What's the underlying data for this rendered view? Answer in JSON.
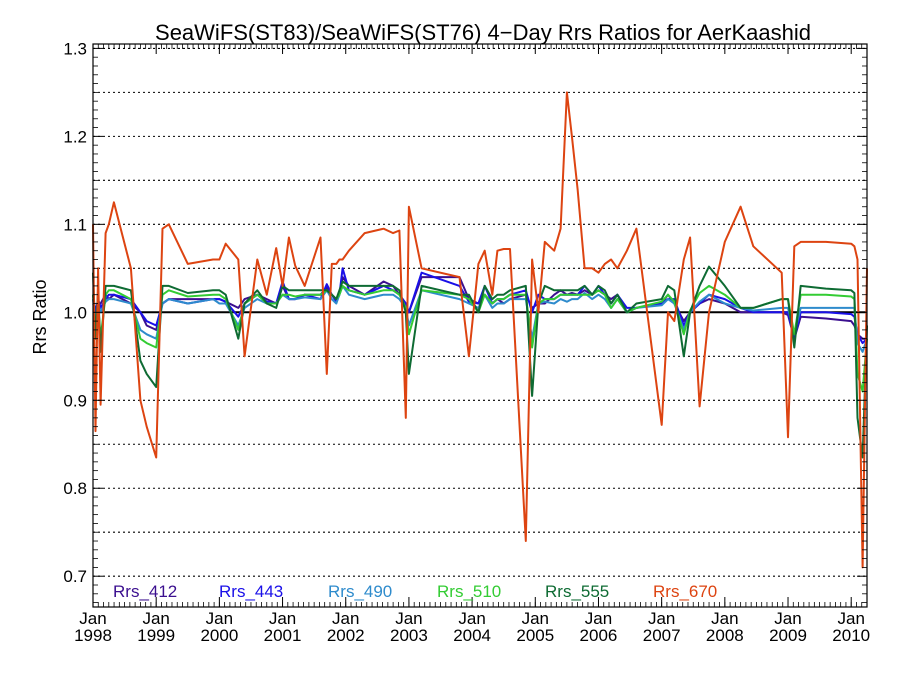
{
  "chart_data": {
    "type": "line",
    "title": "SeaWiFS(ST83)/SeaWiFS(ST76) 4−Day Rrs Ratios for AerKaashid",
    "ylabel": "Rrs Ratio",
    "xlabel": "",
    "xlim": [
      1998.0,
      2010.25
    ],
    "ylim": [
      0.665,
      1.305
    ],
    "yticks": [
      0.7,
      0.8,
      0.9,
      1.0,
      1.1,
      1.2,
      1.3
    ],
    "ytick_labels": [
      "0.7",
      "0.8",
      "0.9",
      "1.0",
      "1.1",
      "1.2",
      "1.3"
    ],
    "ygrid": [
      0.7,
      0.75,
      0.8,
      0.85,
      0.9,
      0.95,
      1.05,
      1.1,
      1.15,
      1.2,
      1.25,
      1.3
    ],
    "xticks": [
      {
        "x": 1998,
        "month": "Jan",
        "year": "1998"
      },
      {
        "x": 1999,
        "month": "Jan",
        "year": "1999"
      },
      {
        "x": 2000,
        "month": "Jan",
        "year": "2000"
      },
      {
        "x": 2001,
        "month": "Jan",
        "year": "2001"
      },
      {
        "x": 2002,
        "month": "Jan",
        "year": "2002"
      },
      {
        "x": 2003,
        "month": "Jan",
        "year": "2003"
      },
      {
        "x": 2004,
        "month": "Jan",
        "year": "2004"
      },
      {
        "x": 2005,
        "month": "Jan",
        "year": "2005"
      },
      {
        "x": 2006,
        "month": "Jan",
        "year": "2006"
      },
      {
        "x": 2007,
        "month": "Jan",
        "year": "2007"
      },
      {
        "x": 2008,
        "month": "Jan",
        "year": "2008"
      },
      {
        "x": 2009,
        "month": "Jan",
        "year": "2009"
      },
      {
        "x": 2010,
        "month": "Jan",
        "year": "2010"
      }
    ],
    "reference_line": 1.0,
    "grid": true,
    "legend_position": "bottom-left",
    "x": [
      1998.0,
      1998.04,
      1998.08,
      1998.12,
      1998.2,
      1998.25,
      1998.33,
      1998.6,
      1998.75,
      1998.85,
      1999.0,
      1999.1,
      1999.2,
      1999.5,
      1999.9,
      2000.0,
      2000.1,
      2000.3,
      2000.4,
      2000.6,
      2000.75,
      2000.9,
      2001.0,
      2001.1,
      2001.2,
      2001.35,
      2001.6,
      2001.7,
      2001.78,
      2001.85,
      2001.9,
      2001.95,
      2002.05,
      2002.3,
      2002.6,
      2002.75,
      2002.85,
      2002.95,
      2003.0,
      2003.2,
      2003.8,
      2003.95,
      2004.1,
      2004.2,
      2004.32,
      2004.4,
      2004.5,
      2004.6,
      2004.85,
      2004.95,
      2005.05,
      2005.15,
      2005.3,
      2005.4,
      2005.5,
      2005.58,
      2005.67,
      2005.78,
      2005.9,
      2006.0,
      2006.1,
      2006.2,
      2006.3,
      2006.45,
      2006.6,
      2007.0,
      2007.1,
      2007.2,
      2007.35,
      2007.45,
      2007.6,
      2007.75,
      2008.0,
      2008.25,
      2008.45,
      2008.9,
      2009.0,
      2009.1,
      2009.2,
      2009.6,
      2010.0,
      2010.05,
      2010.1,
      2010.18,
      2010.25
    ],
    "series": [
      {
        "name": "Rrs_412",
        "color": "#3b0f8f",
        "values": [
          1.01,
          1.005,
          1.008,
          1.01,
          1.02,
          1.015,
          1.02,
          1.01,
          1.0,
          0.985,
          0.98,
          1.01,
          1.015,
          1.015,
          1.015,
          1.015,
          1.012,
          1.005,
          1.015,
          1.02,
          1.015,
          1.01,
          1.03,
          1.015,
          1.015,
          1.02,
          1.02,
          1.028,
          1.02,
          1.015,
          1.02,
          1.04,
          1.03,
          1.02,
          1.035,
          1.03,
          1.02,
          1.01,
          1.0,
          1.04,
          1.04,
          1.015,
          1.01,
          1.02,
          1.01,
          1.015,
          1.01,
          1.015,
          1.02,
          1.005,
          1.01,
          1.01,
          1.02,
          1.025,
          1.02,
          1.022,
          1.02,
          1.025,
          1.02,
          1.025,
          1.02,
          1.015,
          1.02,
          1.0,
          1.005,
          1.01,
          1.02,
          1.01,
          0.99,
          1.0,
          1.01,
          1.015,
          1.01,
          1.0,
          1.0,
          1.0,
          0.997,
          0.97,
          0.995,
          0.993,
          0.99,
          0.985,
          0.975,
          0.97,
          0.97
        ]
      },
      {
        "name": "Rrs_443",
        "color": "#1a10e8",
        "values": [
          1.02,
          1.0,
          1.015,
          1.005,
          1.015,
          1.02,
          1.02,
          1.015,
          1.0,
          0.99,
          0.985,
          1.01,
          1.015,
          1.01,
          1.015,
          1.015,
          1.012,
          0.995,
          1.01,
          1.02,
          1.012,
          1.01,
          1.035,
          1.015,
          1.015,
          1.02,
          1.015,
          1.032,
          1.02,
          1.012,
          1.02,
          1.05,
          1.025,
          1.02,
          1.03,
          1.025,
          1.02,
          1.01,
          1.0,
          1.045,
          1.03,
          1.012,
          1.01,
          1.03,
          1.01,
          1.015,
          1.015,
          1.02,
          1.025,
          1.0,
          1.02,
          1.015,
          1.015,
          1.02,
          1.02,
          1.02,
          1.02,
          1.03,
          1.02,
          1.03,
          1.02,
          1.01,
          1.02,
          1.005,
          1.005,
          1.01,
          1.015,
          1.015,
          0.985,
          1.0,
          1.01,
          1.02,
          1.015,
          1.005,
          1.0,
          1.0,
          1.0,
          0.97,
          1.0,
          1.0,
          0.998,
          0.995,
          0.975,
          0.965,
          0.97
        ]
      },
      {
        "name": "Rrs_490",
        "color": "#2e8bcc",
        "values": [
          1.015,
          0.99,
          1.01,
          1.0,
          1.012,
          1.015,
          1.015,
          1.01,
          0.98,
          0.975,
          0.97,
          1.01,
          1.015,
          1.01,
          1.015,
          1.01,
          1.01,
          0.985,
          1.005,
          1.015,
          1.01,
          1.01,
          1.02,
          1.015,
          1.015,
          1.017,
          1.015,
          1.025,
          1.015,
          1.01,
          1.02,
          1.03,
          1.02,
          1.015,
          1.02,
          1.02,
          1.015,
          1.005,
          0.985,
          1.025,
          1.015,
          1.01,
          1.005,
          1.02,
          1.005,
          1.01,
          1.01,
          1.015,
          1.015,
          0.97,
          1.01,
          1.012,
          1.01,
          1.015,
          1.012,
          1.015,
          1.015,
          1.022,
          1.015,
          1.02,
          1.015,
          1.005,
          1.015,
          1.0,
          1.005,
          1.008,
          1.015,
          1.01,
          0.98,
          1.0,
          1.012,
          1.02,
          1.01,
          1.005,
          1.002,
          1.005,
          1.005,
          0.975,
          1.005,
          1.005,
          1.005,
          1.005,
          0.965,
          0.955,
          0.97
        ]
      },
      {
        "name": "Rrs_510",
        "color": "#33cc33",
        "values": [
          1.02,
          0.98,
          1.01,
          0.97,
          1.02,
          1.025,
          1.025,
          1.015,
          0.97,
          0.965,
          0.96,
          1.02,
          1.025,
          1.018,
          1.02,
          1.02,
          1.015,
          0.98,
          1.01,
          1.02,
          1.01,
          1.01,
          1.02,
          1.02,
          1.018,
          1.02,
          1.02,
          1.025,
          1.02,
          1.015,
          1.02,
          1.03,
          1.025,
          1.02,
          1.025,
          1.025,
          1.02,
          1.005,
          0.975,
          1.025,
          1.02,
          1.015,
          1.0,
          1.02,
          1.01,
          1.015,
          1.015,
          1.02,
          1.02,
          0.96,
          1.01,
          1.015,
          1.015,
          1.02,
          1.02,
          1.02,
          1.02,
          1.02,
          1.02,
          1.025,
          1.02,
          1.005,
          1.015,
          1.0,
          1.005,
          1.012,
          1.02,
          1.012,
          0.975,
          1.002,
          1.022,
          1.03,
          1.02,
          1.005,
          1.005,
          1.015,
          1.015,
          0.975,
          1.02,
          1.02,
          1.018,
          1.015,
          0.93,
          0.91,
          0.97
        ]
      },
      {
        "name": "Rrs_555",
        "color": "#0e6b33",
        "values": [
          1.045,
          0.97,
          1.025,
          0.955,
          1.03,
          1.03,
          1.03,
          1.025,
          0.945,
          0.93,
          0.915,
          1.03,
          1.03,
          1.022,
          1.025,
          1.025,
          1.02,
          0.97,
          1.01,
          1.025,
          1.01,
          1.005,
          1.03,
          1.025,
          1.025,
          1.025,
          1.025,
          1.025,
          1.02,
          1.015,
          1.025,
          1.035,
          1.03,
          1.03,
          1.03,
          1.03,
          1.025,
          1.0,
          0.93,
          1.03,
          1.02,
          1.02,
          1.0,
          1.03,
          1.015,
          1.02,
          1.02,
          1.025,
          1.03,
          0.905,
          1.01,
          1.03,
          1.025,
          1.025,
          1.025,
          1.025,
          1.025,
          1.03,
          1.02,
          1.03,
          1.025,
          1.01,
          1.02,
          1.0,
          1.01,
          1.015,
          1.03,
          1.025,
          0.95,
          1.0,
          1.03,
          1.052,
          1.03,
          1.005,
          1.005,
          1.015,
          1.015,
          0.96,
          1.03,
          1.027,
          1.025,
          1.022,
          0.88,
          0.835,
          0.985
        ]
      },
      {
        "name": "Rrs_670",
        "color": "#dd4411",
        "values": [
          1.1,
          0.865,
          1.05,
          0.895,
          1.09,
          1.1,
          1.125,
          1.05,
          0.9,
          0.87,
          0.835,
          1.095,
          1.1,
          1.055,
          1.06,
          1.06,
          1.078,
          1.06,
          0.95,
          1.06,
          1.02,
          1.073,
          1.03,
          1.085,
          1.053,
          1.03,
          1.085,
          0.93,
          1.055,
          1.055,
          1.06,
          1.06,
          1.07,
          1.09,
          1.095,
          1.09,
          1.093,
          0.88,
          1.12,
          1.05,
          1.04,
          0.95,
          1.055,
          1.07,
          1.02,
          1.07,
          1.072,
          1.072,
          0.74,
          1.06,
          1.0,
          1.08,
          1.07,
          1.095,
          1.25,
          1.2,
          1.14,
          1.05,
          1.05,
          1.045,
          1.055,
          1.06,
          1.05,
          1.07,
          1.095,
          0.872,
          1.0,
          0.99,
          1.06,
          1.085,
          0.893,
          1.0,
          1.08,
          1.12,
          1.075,
          1.045,
          0.858,
          1.075,
          1.08,
          1.08,
          1.078,
          1.075,
          1.06,
          0.71,
          1.05
        ]
      }
    ]
  }
}
